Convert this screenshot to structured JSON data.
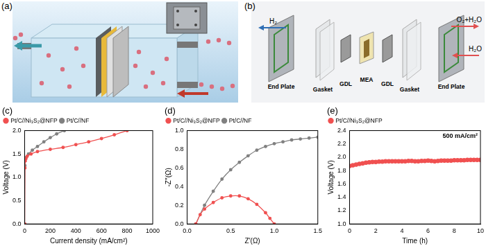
{
  "diagram_a": {
    "label": "(a)"
  },
  "diagram_b": {
    "label": "(b)",
    "inlet_left": "H₂",
    "outlet_right": "O₂+H₂O",
    "inlet_right": "H₂O",
    "parts": [
      "End Plate",
      "Gasket",
      "GDL",
      "MEA",
      "GDL",
      "Gasket",
      "End Plate"
    ]
  },
  "chart_data": [
    {
      "type": "line",
      "title": "(c)",
      "x_label": "Current density (mA/cm²)",
      "y_label": "Voltage (V)",
      "xlim": [
        0,
        1000
      ],
      "xticks": [
        0,
        200,
        400,
        600,
        800,
        1000
      ],
      "ylim": [
        0,
        2.0
      ],
      "yticks": [
        {
          "value": 0,
          "label": "0.0"
        },
        {
          "value": 0.5,
          "label": "0.5"
        },
        {
          "value": 1.0,
          "label": "1.0"
        },
        {
          "value": 1.5,
          "label": "1.5"
        },
        {
          "value": 2.0,
          "label": "2.0"
        }
      ],
      "grid": false,
      "legend": "upper left",
      "series": [
        {
          "name": "Pt/C//Ni₃S₂@NFP",
          "color": "#f05050",
          "marker": "circle",
          "line_style": "solid",
          "x": [
            0,
            2,
            5,
            10,
            20,
            50,
            100,
            200,
            300,
            400,
            500,
            600,
            700,
            800
          ],
          "values": [
            0,
            1.2,
            1.35,
            1.4,
            1.45,
            1.5,
            1.55,
            1.6,
            1.64,
            1.7,
            1.76,
            1.83,
            1.91,
            2.0
          ]
        },
        {
          "name": "Pt/C//NF",
          "color": "#808080",
          "marker": "circle",
          "line_style": "solid",
          "x": [
            0,
            2,
            10,
            30,
            60,
            100,
            150,
            200,
            250,
            310
          ],
          "values": [
            0,
            1.25,
            1.42,
            1.5,
            1.58,
            1.66,
            1.76,
            1.85,
            1.93,
            2.0
          ]
        }
      ]
    },
    {
      "type": "line",
      "title": "(d)",
      "x_label": "Z'(Ω)",
      "y_label": "-Z''(Ω)",
      "xlim": [
        0,
        1.5
      ],
      "xticks": [
        {
          "value": 0,
          "label": "0.0"
        },
        {
          "value": 0.5,
          "label": "0.5"
        },
        {
          "value": 1.0,
          "label": "1.0"
        },
        {
          "value": 1.5,
          "label": "1.5"
        }
      ],
      "ylim": [
        0,
        1.0
      ],
      "yticks": [
        {
          "value": 0,
          "label": "0.0"
        },
        {
          "value": 0.2,
          "label": "0.2"
        },
        {
          "value": 0.4,
          "label": "0.4"
        },
        {
          "value": 0.6,
          "label": "0.6"
        },
        {
          "value": 0.8,
          "label": "0.8"
        },
        {
          "value": 1.0,
          "label": "1.0"
        }
      ],
      "grid": false,
      "legend": "upper left",
      "series": [
        {
          "name": "Pt/C//Ni₃S₂@NFP",
          "color": "#f05050",
          "marker": "circle",
          "line_style": "solid",
          "x": [
            0.1,
            0.15,
            0.2,
            0.3,
            0.4,
            0.5,
            0.6,
            0.7,
            0.8,
            0.9,
            0.95,
            1.0
          ],
          "values": [
            0,
            0.1,
            0.16,
            0.23,
            0.28,
            0.3,
            0.3,
            0.27,
            0.21,
            0.12,
            0.06,
            0
          ]
        },
        {
          "name": "Pt/C//NF",
          "color": "#808080",
          "marker": "circle",
          "line_style": "solid",
          "x": [
            0.1,
            0.2,
            0.3,
            0.4,
            0.5,
            0.6,
            0.7,
            0.8,
            0.9,
            1.0,
            1.1,
            1.2,
            1.3,
            1.4,
            1.5
          ],
          "values": [
            0,
            0.2,
            0.35,
            0.48,
            0.58,
            0.66,
            0.73,
            0.79,
            0.83,
            0.86,
            0.88,
            0.9,
            0.91,
            0.92,
            0.93
          ]
        }
      ]
    },
    {
      "type": "scatter",
      "title": "(e)",
      "x_label": "Time (h)",
      "y_label": "Voltage (V)",
      "xlim": [
        0,
        10
      ],
      "xticks": [
        0,
        2,
        4,
        6,
        8,
        10
      ],
      "ylim": [
        1.0,
        2.4
      ],
      "yticks": [
        {
          "value": 1.0,
          "label": "1.0"
        },
        {
          "value": 1.2,
          "label": "1.2"
        },
        {
          "value": 1.4,
          "label": "1.4"
        },
        {
          "value": 1.6,
          "label": "1.6"
        },
        {
          "value": 1.8,
          "label": "1.8"
        },
        {
          "value": 2.0,
          "label": "2.0"
        },
        {
          "value": 2.2,
          "label": "2.2"
        },
        {
          "value": 2.4,
          "label": "2.4"
        }
      ],
      "grid": false,
      "legend": "upper left",
      "annotations": [
        "500 mA/cm²"
      ],
      "series": [
        {
          "name": "Pt/C//Ni₃S₂@NFP",
          "color": "#f05050",
          "marker": "circle",
          "line_style": "none",
          "x": [
            0,
            0.25,
            0.5,
            0.75,
            1,
            1.25,
            1.5,
            1.75,
            2,
            2.25,
            2.5,
            2.75,
            3,
            3.25,
            3.5,
            3.75,
            4,
            4.25,
            4.5,
            4.75,
            5,
            5.25,
            5.5,
            5.75,
            6,
            6.25,
            6.5,
            6.75,
            7,
            7.25,
            7.5,
            7.75,
            8,
            8.25,
            8.5,
            8.75,
            9,
            9.25,
            9.5,
            9.75,
            10
          ],
          "values": [
            1.87,
            1.88,
            1.89,
            1.9,
            1.91,
            1.92,
            1.925,
            1.93,
            1.93,
            1.935,
            1.935,
            1.94,
            1.94,
            1.94,
            1.94,
            1.94,
            1.94,
            1.94,
            1.945,
            1.945,
            1.94,
            1.94,
            1.945,
            1.945,
            1.95,
            1.945,
            1.94,
            1.945,
            1.95,
            1.95,
            1.95,
            1.95,
            1.955,
            1.955,
            1.955,
            1.955,
            1.96,
            1.96,
            1.96,
            1.96,
            1.96
          ]
        }
      ]
    }
  ]
}
